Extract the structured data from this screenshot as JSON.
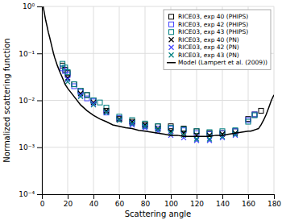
{
  "chart_data": {
    "type": "scatter",
    "xlabel": "Scattering angle",
    "ylabel": "Normalized scattering function",
    "log": "y",
    "grid": true,
    "legend": "upper right",
    "xlim": [
      0,
      180
    ],
    "ylim": [
      0.0001,
      1
    ],
    "xticks": [
      0,
      20,
      40,
      60,
      80,
      100,
      120,
      140,
      160,
      180
    ],
    "yticks": [
      {
        "value": 0.0001,
        "label": "10⁻⁴"
      },
      {
        "value": 0.001,
        "label": "10⁻³"
      },
      {
        "value": 0.01,
        "label": "10⁻²"
      },
      {
        "value": 0.1,
        "label": "10⁻¹"
      },
      {
        "value": 1,
        "label": "10⁰"
      }
    ],
    "series": [
      {
        "name": "RICE03, exp 40 (PHIPS)",
        "color": "#000000",
        "marker": "square",
        "x": [
          16,
          18,
          20,
          25,
          30,
          35,
          40,
          50,
          60,
          70,
          80,
          90,
          100,
          110,
          120,
          130,
          140,
          150,
          160,
          165,
          170
        ],
        "values": [
          0.055,
          0.045,
          0.038,
          0.022,
          0.016,
          0.013,
          0.01,
          0.006,
          0.004,
          0.0035,
          0.003,
          0.0028,
          0.0028,
          0.0025,
          0.0022,
          0.002,
          0.002,
          0.0022,
          0.004,
          0.005,
          0.006
        ]
      },
      {
        "name": "RICE03, exp 42 (PHIPS)",
        "color": "#4444ff",
        "marker": "square",
        "x": [
          16,
          18,
          20,
          25,
          30,
          35,
          40,
          50,
          60,
          70,
          80,
          90,
          100,
          110,
          120,
          130,
          140,
          150,
          160,
          165
        ],
        "values": [
          0.048,
          0.042,
          0.035,
          0.02,
          0.015,
          0.011,
          0.0095,
          0.0055,
          0.0042,
          0.0033,
          0.0028,
          0.0025,
          0.0025,
          0.0023,
          0.002,
          0.0019,
          0.002,
          0.0022,
          0.0038,
          0.005
        ]
      },
      {
        "name": "RICE03, exp 43 (PHIPS)",
        "color": "#008080",
        "marker": "square",
        "x": [
          16,
          18,
          20,
          25,
          30,
          35,
          40,
          45,
          50,
          60,
          70,
          80,
          90,
          100,
          110,
          120,
          130,
          140,
          150,
          160,
          165
        ],
        "values": [
          0.06,
          0.05,
          0.04,
          0.022,
          0.016,
          0.013,
          0.01,
          0.009,
          0.007,
          0.0045,
          0.0038,
          0.0032,
          0.0028,
          0.0026,
          0.0024,
          0.0022,
          0.0021,
          0.0022,
          0.0023,
          0.0035,
          0.0048
        ]
      },
      {
        "name": "RICE03, exp 40 (PN)",
        "color": "#000000",
        "marker": "x",
        "x": [
          20,
          30,
          40,
          50,
          60,
          70,
          80,
          90,
          100,
          110,
          120,
          130,
          140,
          150
        ],
        "values": [
          0.03,
          0.014,
          0.009,
          0.006,
          0.004,
          0.0035,
          0.003,
          0.0025,
          0.0022,
          0.002,
          0.0018,
          0.0018,
          0.0019,
          0.002
        ]
      },
      {
        "name": "RICE03, exp 42 (PN)",
        "color": "#4444ff",
        "marker": "x",
        "x": [
          20,
          30,
          40,
          50,
          60,
          70,
          80,
          90,
          100,
          110,
          120,
          130,
          140,
          150
        ],
        "values": [
          0.028,
          0.013,
          0.0085,
          0.0055,
          0.0038,
          0.003,
          0.0026,
          0.0022,
          0.0018,
          0.0016,
          0.0014,
          0.0014,
          0.0016,
          0.0018
        ]
      },
      {
        "name": "RICE03, exp 43 (PN)",
        "color": "#008080",
        "marker": "x",
        "x": [
          20,
          30,
          40,
          50,
          60,
          70,
          80,
          90,
          100,
          110,
          120,
          130,
          140,
          150
        ],
        "values": [
          0.025,
          0.012,
          0.008,
          0.0055,
          0.0038,
          0.0032,
          0.0028,
          0.0024,
          0.002,
          0.0018,
          0.0015,
          0.0015,
          0.0017,
          0.0019
        ]
      },
      {
        "name": "Model (Lampert et al. (2009))",
        "color": "#000000",
        "type": "line",
        "line_style": "solid",
        "x": [
          1,
          2,
          3,
          4,
          5,
          6,
          7,
          8,
          9,
          10,
          12,
          14,
          16,
          18,
          20,
          25,
          30,
          35,
          40,
          45,
          50,
          55,
          60,
          65,
          70,
          75,
          80,
          85,
          90,
          95,
          100,
          105,
          110,
          115,
          120,
          125,
          130,
          135,
          140,
          145,
          150,
          155,
          160,
          162,
          164,
          166,
          168,
          170,
          172,
          174,
          176,
          178,
          180
        ],
        "values": [
          1.0,
          0.7,
          0.5,
          0.38,
          0.28,
          0.22,
          0.17,
          0.13,
          0.1,
          0.08,
          0.055,
          0.04,
          0.03,
          0.022,
          0.018,
          0.012,
          0.008,
          0.006,
          0.0048,
          0.004,
          0.0035,
          0.003,
          0.0028,
          0.0026,
          0.0025,
          0.0023,
          0.0022,
          0.0021,
          0.002,
          0.0019,
          0.0018,
          0.0018,
          0.0017,
          0.0017,
          0.0017,
          0.0017,
          0.0017,
          0.0018,
          0.0018,
          0.0019,
          0.002,
          0.0021,
          0.0022,
          0.0022,
          0.0023,
          0.0024,
          0.0025,
          0.003,
          0.0038,
          0.005,
          0.007,
          0.01,
          0.013
        ]
      }
    ]
  }
}
